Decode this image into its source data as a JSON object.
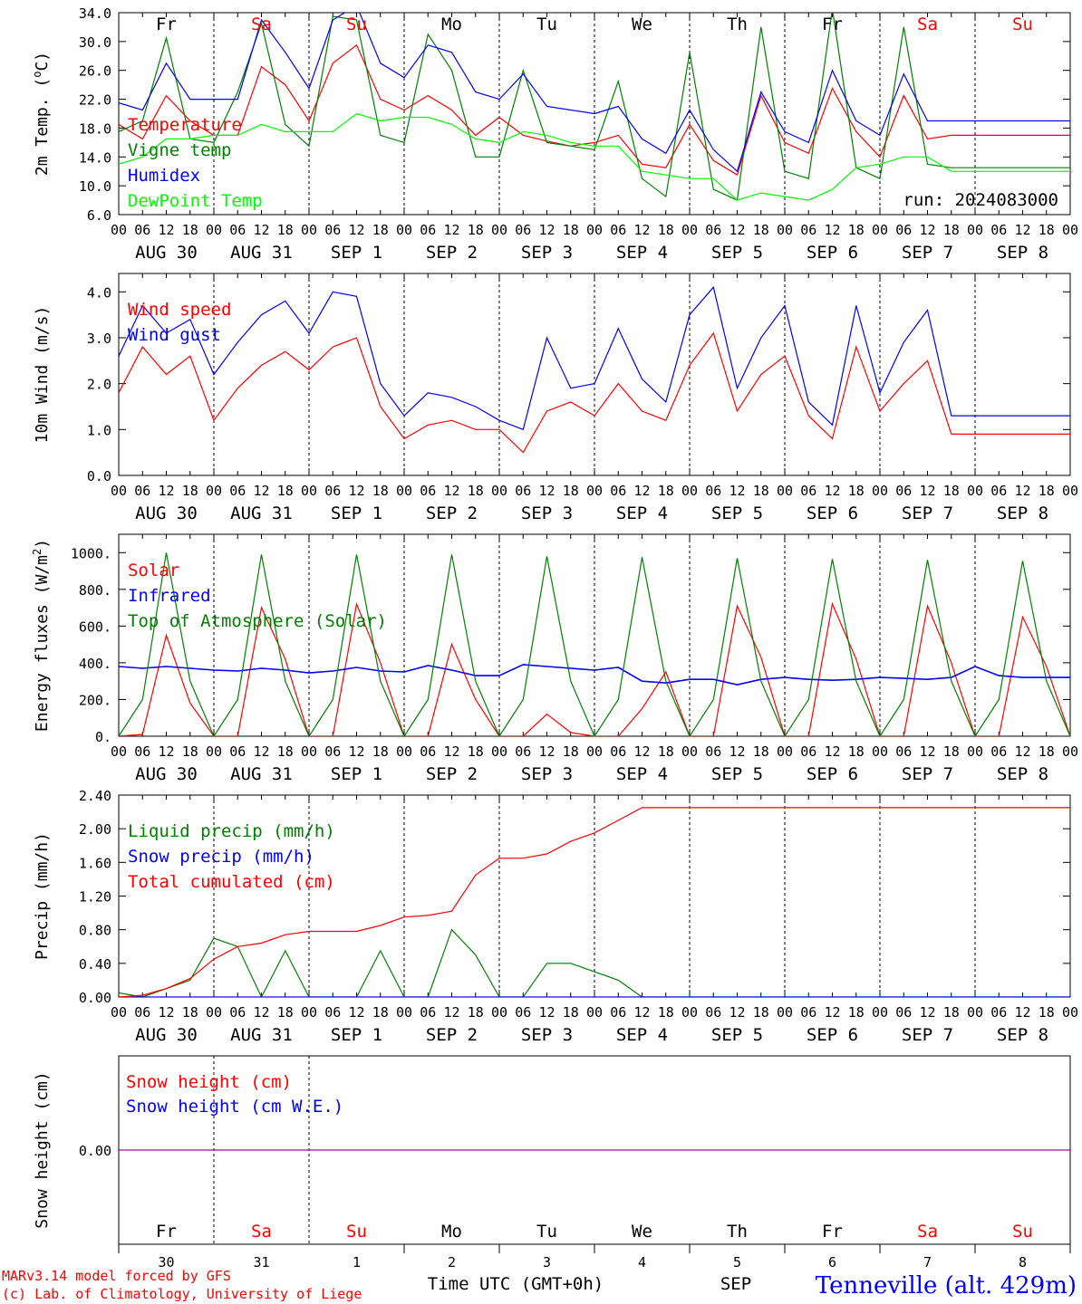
{
  "chart_data": [
    {
      "type": "line",
      "ylabel_pre": "2m Temp. (",
      "ylabel_sup": "o",
      "ylabel_post": "C)",
      "ylim": [
        6.0,
        34.0
      ],
      "yticks": [
        "34.0",
        "30.0",
        "26.0",
        "22.0",
        "18.0",
        "14.0",
        "10.0",
        "6.0"
      ],
      "run_label": "run: 2024083000",
      "x_hours": [
        0,
        6,
        12,
        18,
        24,
        30,
        36,
        42,
        48,
        54,
        60,
        66,
        72,
        78,
        84,
        90,
        96,
        102,
        108,
        114,
        120,
        126,
        132,
        138,
        144,
        150,
        156,
        162,
        168,
        174,
        180,
        186,
        192,
        198,
        204,
        210,
        216,
        222,
        228,
        234,
        240
      ],
      "series": [
        {
          "name": "Temperature",
          "color": "#ff0000",
          "values": [
            18.5,
            16.5,
            22.5,
            19,
            17,
            17,
            26.5,
            24,
            19,
            27,
            29.5,
            22,
            20.5,
            22.5,
            20.5,
            17,
            19.5,
            17,
            16.2,
            15.5,
            16,
            17,
            13,
            12.5,
            18.5,
            13.5,
            11.5,
            22.5,
            16,
            14.5,
            23.5,
            17.5,
            14,
            22.5,
            16.5,
            17,
            17,
            17,
            17,
            17,
            17
          ]
        },
        {
          "name": "Vigne temp",
          "color": "#008000",
          "values": [
            17.5,
            19,
            30.5,
            16.5,
            16,
            23,
            32.5,
            18.5,
            15.5,
            33.5,
            33,
            17,
            16,
            31,
            26,
            14,
            14,
            26,
            16,
            15.5,
            15,
            24.5,
            11,
            8.5,
            28.5,
            9.5,
            8,
            32,
            12,
            11,
            34.5,
            12.5,
            11,
            32,
            13,
            12.5,
            12.5,
            12.5,
            12.5,
            12.5,
            12.5
          ]
        },
        {
          "name": "Humidex",
          "color": "#0000ff",
          "values": [
            21.5,
            20.5,
            27,
            22,
            22,
            22,
            33,
            28.5,
            23.5,
            33,
            35,
            27,
            25,
            29.5,
            28.5,
            23,
            22,
            25.5,
            21,
            20.5,
            20,
            21,
            16.5,
            14.5,
            20.5,
            15,
            12,
            23,
            17.5,
            16,
            26,
            19,
            17,
            25.5,
            19,
            19,
            19,
            19,
            19,
            19,
            19
          ]
        },
        {
          "name": "DewPoint Temp",
          "color": "#00ff00",
          "values": [
            13,
            14,
            16.5,
            16.5,
            17,
            17,
            18.5,
            17.5,
            17.5,
            17.5,
            20,
            19,
            19.5,
            19.5,
            18.5,
            16.5,
            16,
            17.5,
            17,
            16,
            15.5,
            15.5,
            12,
            11.5,
            11,
            11,
            8,
            9,
            8.5,
            8,
            9.5,
            12.5,
            13,
            14,
            14,
            12,
            12,
            12,
            12,
            12,
            12
          ]
        }
      ]
    },
    {
      "type": "line",
      "ylabel": "10m Wind (m/s)",
      "ylim": [
        0.0,
        4.4
      ],
      "yticks": [
        "4.0",
        "3.0",
        "2.0",
        "1.0",
        "0.0"
      ],
      "x_hours": [
        0,
        6,
        12,
        18,
        24,
        30,
        36,
        42,
        48,
        54,
        60,
        66,
        72,
        78,
        84,
        90,
        96,
        102,
        108,
        114,
        120,
        126,
        132,
        138,
        144,
        150,
        156,
        162,
        168,
        174,
        180,
        186,
        192,
        198,
        204,
        210,
        216,
        222,
        228,
        234,
        240
      ],
      "series": [
        {
          "name": "Wind speed",
          "color": "#ff0000",
          "values": [
            1.8,
            2.8,
            2.2,
            2.6,
            1.2,
            1.9,
            2.4,
            2.7,
            2.3,
            2.8,
            3.0,
            1.5,
            0.8,
            1.1,
            1.2,
            1.0,
            1.0,
            0.5,
            1.4,
            1.6,
            1.3,
            2.0,
            1.4,
            1.2,
            2.4,
            3.1,
            1.4,
            2.2,
            2.6,
            1.3,
            0.8,
            2.8,
            1.4,
            2.0,
            2.5,
            0.9,
            0.9,
            0.9,
            0.9,
            0.9,
            0.9
          ]
        },
        {
          "name": "Wind gust",
          "color": "#0000ff",
          "values": [
            2.6,
            3.7,
            3.1,
            3.4,
            2.2,
            2.9,
            3.5,
            3.8,
            3.1,
            4.0,
            3.9,
            2.0,
            1.3,
            1.8,
            1.7,
            1.5,
            1.2,
            1.0,
            3.0,
            1.9,
            2.0,
            3.2,
            2.1,
            1.6,
            3.5,
            4.1,
            1.9,
            3.0,
            3.7,
            1.6,
            1.1,
            3.7,
            1.8,
            2.9,
            3.6,
            1.3,
            1.3,
            1.3,
            1.3,
            1.3,
            1.3
          ]
        }
      ]
    },
    {
      "type": "line",
      "ylabel_pre": "Energy fluxes (W/m",
      "ylabel_sup": "2",
      "ylabel_post": ")",
      "ylim": [
        0,
        1100
      ],
      "yticks": [
        "1000.",
        "800.",
        "600.",
        "400.",
        "200.",
        "0."
      ],
      "x_hours": [
        0,
        6,
        12,
        18,
        24,
        30,
        36,
        42,
        48,
        54,
        60,
        66,
        72,
        78,
        84,
        90,
        96,
        102,
        108,
        114,
        120,
        126,
        132,
        138,
        144,
        150,
        156,
        162,
        168,
        174,
        180,
        186,
        192,
        198,
        204,
        210,
        216,
        222,
        228,
        234,
        240
      ],
      "series": [
        {
          "name": "Solar",
          "color": "#ff0000",
          "values": [
            0,
            10,
            550,
            180,
            0,
            0,
            700,
            420,
            0,
            0,
            720,
            400,
            0,
            0,
            500,
            200,
            0,
            0,
            120,
            20,
            0,
            0,
            150,
            350,
            0,
            0,
            710,
            430,
            0,
            0,
            720,
            420,
            0,
            0,
            710,
            400,
            0,
            0,
            650,
            380,
            0
          ]
        },
        {
          "name": "Infrared",
          "color": "#0000ff",
          "values": [
            380,
            370,
            380,
            370,
            360,
            355,
            370,
            360,
            345,
            355,
            375,
            355,
            350,
            385,
            360,
            330,
            330,
            390,
            380,
            370,
            360,
            375,
            300,
            290,
            310,
            310,
            280,
            310,
            320,
            310,
            305,
            310,
            320,
            315,
            310,
            320,
            380,
            330,
            320,
            320,
            320
          ]
        },
        {
          "name": "Top of Atmosphere (Solar)",
          "color": "#008000",
          "values": [
            0,
            200,
            1000,
            300,
            0,
            200,
            990,
            300,
            0,
            200,
            990,
            300,
            0,
            200,
            990,
            300,
            0,
            200,
            980,
            300,
            0,
            200,
            975,
            300,
            0,
            200,
            970,
            300,
            0,
            200,
            965,
            300,
            0,
            200,
            960,
            300,
            0,
            200,
            955,
            300,
            0
          ]
        }
      ]
    },
    {
      "type": "line",
      "ylabel": "Precip (mm/h)",
      "ylim": [
        0.0,
        2.4
      ],
      "yticks": [
        "2.40",
        "2.00",
        "1.60",
        "1.20",
        "0.80",
        "0.40",
        "0.00"
      ],
      "x_hours": [
        0,
        6,
        12,
        18,
        24,
        30,
        36,
        42,
        48,
        54,
        60,
        66,
        72,
        78,
        84,
        90,
        96,
        102,
        108,
        114,
        120,
        126,
        132,
        138,
        144,
        150,
        156,
        162,
        168,
        174,
        180,
        186,
        192,
        198,
        204,
        210,
        216,
        222,
        228,
        234,
        240
      ],
      "series": [
        {
          "name": "Liquid precip (mm/h)",
          "color": "#008000",
          "values": [
            0.05,
            0.0,
            0.1,
            0.2,
            0.7,
            0.6,
            0.0,
            0.55,
            0.0,
            0.0,
            0.0,
            0.55,
            0.0,
            0.0,
            0.8,
            0.5,
            0.0,
            0.0,
            0.4,
            0.4,
            0.3,
            0.2,
            0.0,
            0.0,
            0,
            0,
            0,
            0,
            0,
            0,
            0,
            0,
            0,
            0,
            0,
            0,
            0,
            0,
            0,
            0,
            0
          ]
        },
        {
          "name": "Snow precip (mm/h)",
          "color": "#0000ff",
          "values": [
            0,
            0,
            0,
            0,
            0,
            0,
            0,
            0,
            0,
            0,
            0,
            0,
            0,
            0,
            0,
            0,
            0,
            0,
            0,
            0,
            0,
            0,
            0,
            0,
            0,
            0,
            0,
            0,
            0,
            0,
            0,
            0,
            0,
            0,
            0,
            0,
            0,
            0,
            0,
            0,
            0
          ]
        },
        {
          "name": "Total cumulated (cm)",
          "color": "#ff0000",
          "values": [
            0.0,
            0.02,
            0.1,
            0.22,
            0.45,
            0.6,
            0.64,
            0.74,
            0.78,
            0.78,
            0.78,
            0.85,
            0.95,
            0.97,
            1.02,
            1.45,
            1.65,
            1.65,
            1.7,
            1.85,
            1.95,
            2.1,
            2.25,
            2.25,
            2.25,
            2.25,
            2.25,
            2.25,
            2.25,
            2.25,
            2.25,
            2.25,
            2.25,
            2.25,
            2.25,
            2.25,
            2.25,
            2.25,
            2.25,
            2.25,
            2.25
          ]
        }
      ]
    },
    {
      "type": "line",
      "ylabel": "Snow height (cm)",
      "ylim": [
        -1.0,
        1.0
      ],
      "yticks": [
        "0.00"
      ],
      "x_hours": [
        0,
        240
      ],
      "series": [
        {
          "name": "Snow height (cm)",
          "color": "#ff0000",
          "values": [
            0.0,
            0.0
          ]
        },
        {
          "name": "Snow height (cm W.E.)",
          "color": "#0000ff",
          "values": [
            0.0,
            0.0
          ]
        }
      ]
    }
  ],
  "x_axis": {
    "hour_ticks": [
      "00",
      "06",
      "12",
      "18"
    ],
    "final_tick": "00",
    "day_names": [
      {
        "text": "Fr",
        "color": "#000000"
      },
      {
        "text": "Sa",
        "color": "#ff0000"
      },
      {
        "text": "Su",
        "color": "#ff0000"
      },
      {
        "text": "Mo",
        "color": "#000000"
      },
      {
        "text": "Tu",
        "color": "#000000"
      },
      {
        "text": "We",
        "color": "#000000"
      },
      {
        "text": "Th",
        "color": "#000000"
      },
      {
        "text": "Fr",
        "color": "#000000"
      },
      {
        "text": "Sa",
        "color": "#ff0000"
      },
      {
        "text": "Su",
        "color": "#ff0000"
      }
    ],
    "date_labels": [
      "AUG 30",
      "AUG 31",
      "SEP  1",
      "SEP  2",
      "SEP  3",
      "SEP  4",
      "SEP  5",
      "SEP  6",
      "SEP  7",
      "SEP  8"
    ],
    "day_numbers": [
      "30",
      "31",
      "1",
      "2",
      "3",
      "4",
      "5",
      "6",
      "7",
      "8"
    ],
    "month_label": "SEP",
    "xlabel": "Time UTC (GMT+0h)"
  },
  "footer": {
    "model_line": "MARv3.14 model forced by GFS",
    "copyright_line": "(c) Lab. of Climatology, University of Liege",
    "location": "Tenneville (alt. 429m)"
  }
}
